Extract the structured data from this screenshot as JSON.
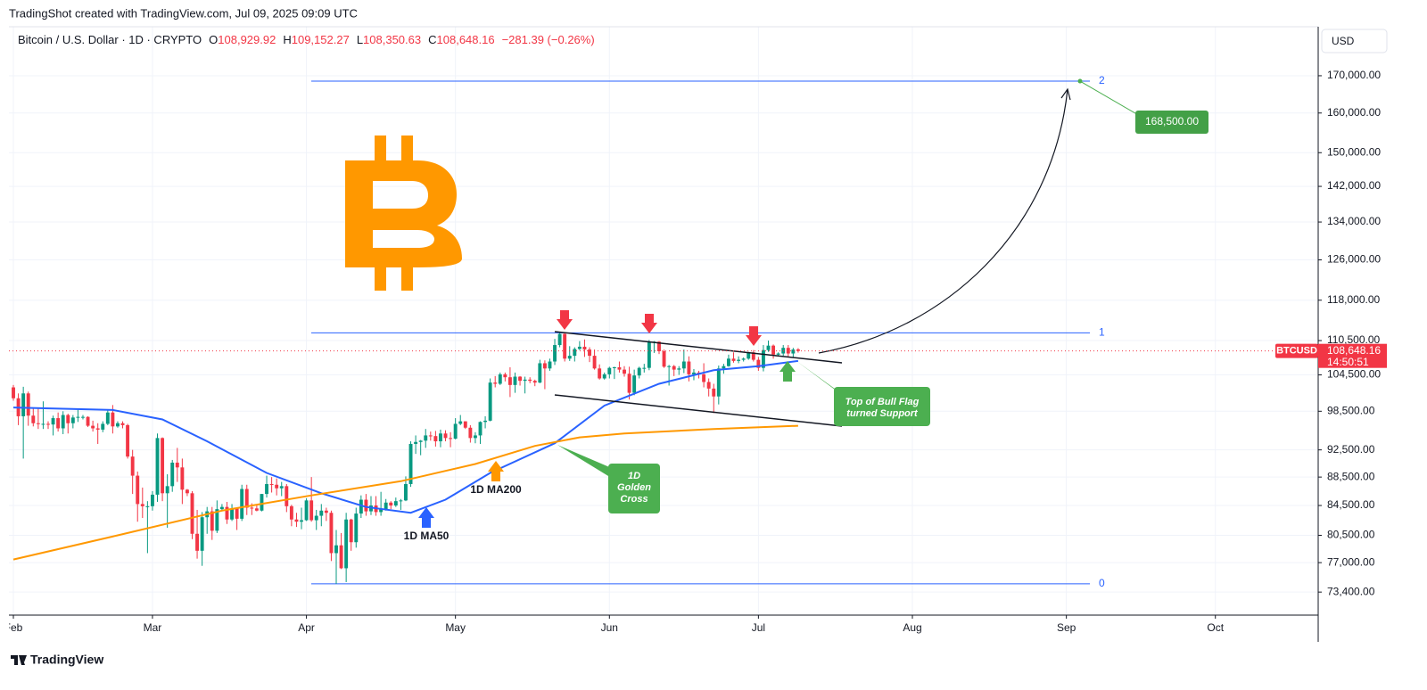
{
  "header": "TradingShot created with TradingView.com, Jul 09, 2025 09:09 UTC",
  "footer": "TradingView",
  "chart_data": {
    "type": "candlestick",
    "title": "Bitcoin / U.S. Dollar · 1D · CRYPTO",
    "ohlc": [
      {
        "prefix": "O",
        "text": "108,929.92"
      },
      {
        "prefix": "H",
        "text": "109,152.27"
      },
      {
        "prefix": "L",
        "text": "108,350.63"
      },
      {
        "prefix": "C",
        "text": "108,648.16"
      }
    ],
    "change": "−281.39 (−0.26%)",
    "currency": "USD",
    "log_scale": true,
    "grid": true,
    "up_color": "#089981",
    "down_color": "#f23645",
    "xlim": [
      -0.9,
      262.7
    ],
    "xticks": [
      {
        "value": 0,
        "label": "Feb"
      },
      {
        "value": 28,
        "label": "Mar"
      },
      {
        "value": 59,
        "label": "Apr"
      },
      {
        "value": 89,
        "label": "May"
      },
      {
        "value": 120,
        "label": "Jun"
      },
      {
        "value": 150,
        "label": "Jul"
      },
      {
        "value": 181,
        "label": "Aug"
      },
      {
        "value": 212,
        "label": "Sep"
      },
      {
        "value": 242,
        "label": "Oct"
      }
    ],
    "ylim": [
      70700,
      184100
    ],
    "yticks": [
      {
        "value": 170000,
        "label": "170,000.00"
      },
      {
        "value": 160000,
        "label": "160,000.00"
      },
      {
        "value": 150000,
        "label": "150,000.00"
      },
      {
        "value": 142000,
        "label": "142,000.00"
      },
      {
        "value": 134000,
        "label": "134,000.00"
      },
      {
        "value": 126000,
        "label": "126,000.00"
      },
      {
        "value": 118000,
        "label": "118,000.00"
      },
      {
        "value": 110500,
        "label": "110,500.00"
      },
      {
        "value": 104500,
        "label": "104,500.00"
      },
      {
        "value": 98500,
        "label": "98,500.00"
      },
      {
        "value": 92500,
        "label": "92,500.00"
      },
      {
        "value": 88500,
        "label": "88,500.00"
      },
      {
        "value": 84500,
        "label": "84,500.00"
      },
      {
        "value": 80500,
        "label": "80,500.00"
      },
      {
        "value": 77000,
        "label": "77,000.00"
      },
      {
        "value": 73400,
        "label": "73,400.00"
      }
    ],
    "candles": [
      [
        102400,
        102800,
        100200,
        100600
      ],
      [
        100600,
        101400,
        96300,
        97700
      ],
      [
        97700,
        102500,
        91200,
        101400
      ],
      [
        101400,
        101700,
        96200,
        97800
      ],
      [
        97800,
        99000,
        96100,
        96600
      ],
      [
        96600,
        99000,
        95700,
        96500
      ],
      [
        96500,
        100100,
        95700,
        96500
      ],
      [
        96500,
        96900,
        95700,
        96400
      ],
      [
        96400,
        97800,
        94700,
        97400
      ],
      [
        97400,
        98300,
        95300,
        95800
      ],
      [
        95800,
        98500,
        94900,
        97900
      ],
      [
        97900,
        98100,
        95000,
        96600
      ],
      [
        96600,
        97900,
        95800,
        97500
      ],
      [
        97500,
        98800,
        96800,
        97600
      ],
      [
        97600,
        97900,
        97200,
        97600
      ],
      [
        97600,
        97700,
        96000,
        96200
      ],
      [
        96200,
        97000,
        95300,
        95800
      ],
      [
        95800,
        96600,
        93400,
        95600
      ],
      [
        95600,
        96900,
        95200,
        96500
      ],
      [
        96500,
        98700,
        96300,
        98300
      ],
      [
        98300,
        99500,
        95000,
        96100
      ],
      [
        96100,
        96900,
        95900,
        96600
      ],
      [
        96600,
        96900,
        95800,
        96300
      ],
      [
        96300,
        96500,
        91200,
        91500
      ],
      [
        91500,
        92500,
        86100,
        88700
      ],
      [
        88700,
        89300,
        82300,
        84700
      ],
      [
        84700,
        87000,
        82800,
        84400
      ],
      [
        84400,
        85100,
        78200,
        84400
      ],
      [
        84400,
        86500,
        83800,
        86000
      ],
      [
        86000,
        95000,
        85000,
        94300
      ],
      [
        94300,
        94400,
        85100,
        86200
      ],
      [
        86200,
        88900,
        81500,
        87200
      ],
      [
        87200,
        91000,
        86400,
        90600
      ],
      [
        90600,
        92800,
        87800,
        89900
      ],
      [
        89900,
        91200,
        84700,
        86700
      ],
      [
        86700,
        86800,
        85800,
        86200
      ],
      [
        86200,
        86500,
        80000,
        80700
      ],
      [
        80700,
        83900,
        77500,
        78500
      ],
      [
        78500,
        83600,
        76600,
        82900
      ],
      [
        82900,
        84300,
        80700,
        83700
      ],
      [
        83700,
        84300,
        79900,
        81100
      ],
      [
        81100,
        85200,
        80800,
        84000
      ],
      [
        84000,
        84700,
        83700,
        84300
      ],
      [
        84300,
        85000,
        82000,
        82600
      ],
      [
        82600,
        84700,
        82400,
        84100
      ],
      [
        84100,
        84100,
        81200,
        82700
      ],
      [
        82700,
        87400,
        82400,
        86800
      ],
      [
        86800,
        87400,
        83200,
        84200
      ],
      [
        84200,
        84800,
        83200,
        84100
      ],
      [
        84100,
        84500,
        83700,
        83800
      ],
      [
        83800,
        86100,
        83700,
        86100
      ],
      [
        86100,
        88700,
        85600,
        87500
      ],
      [
        87500,
        88500,
        86300,
        87400
      ],
      [
        87400,
        88300,
        85900,
        86900
      ],
      [
        86900,
        87800,
        85800,
        87200
      ],
      [
        87200,
        87500,
        83600,
        84400
      ],
      [
        84400,
        84600,
        81700,
        82600
      ],
      [
        82600,
        83500,
        81600,
        82300
      ],
      [
        82300,
        84200,
        81300,
        82500
      ],
      [
        82500,
        85500,
        82400,
        85200
      ],
      [
        85200,
        88500,
        82300,
        82500
      ],
      [
        82500,
        83900,
        81200,
        83100
      ],
      [
        83100,
        84700,
        81700,
        83800
      ],
      [
        83800,
        84200,
        82400,
        83500
      ],
      [
        83500,
        83800,
        77200,
        78200
      ],
      [
        78200,
        81200,
        74400,
        79200
      ],
      [
        79200,
        80800,
        76200,
        76300
      ],
      [
        76300,
        83500,
        74600,
        82600
      ],
      [
        82600,
        82700,
        78500,
        79600
      ],
      [
        79600,
        84200,
        78900,
        83400
      ],
      [
        83400,
        85900,
        82800,
        85300
      ],
      [
        85300,
        86100,
        83100,
        83700
      ],
      [
        83700,
        85800,
        83200,
        84500
      ],
      [
        84500,
        85800,
        83100,
        83600
      ],
      [
        83600,
        86400,
        83100,
        84000
      ],
      [
        84000,
        85400,
        83800,
        84900
      ],
      [
        84900,
        85100,
        84000,
        84500
      ],
      [
        84500,
        85600,
        84300,
        85100
      ],
      [
        85100,
        85400,
        83900,
        85200
      ],
      [
        85200,
        88600,
        85100,
        87500
      ],
      [
        87500,
        93800,
        87100,
        93400
      ],
      [
        93400,
        94700,
        91900,
        93700
      ],
      [
        93700,
        94000,
        91700,
        93900
      ],
      [
        93900,
        95700,
        92800,
        94700
      ],
      [
        94700,
        95300,
        93900,
        94600
      ],
      [
        94600,
        95400,
        93000,
        93800
      ],
      [
        93800,
        95600,
        92900,
        95000
      ],
      [
        95000,
        95500,
        93800,
        94300
      ],
      [
        94300,
        95200,
        92900,
        94200
      ],
      [
        94200,
        97400,
        94100,
        96500
      ],
      [
        96500,
        97900,
        96300,
        96900
      ],
      [
        96900,
        96900,
        95700,
        95900
      ],
      [
        95900,
        96300,
        93600,
        94300
      ],
      [
        94300,
        95200,
        93500,
        94700
      ],
      [
        94700,
        96900,
        93400,
        96800
      ],
      [
        96800,
        97700,
        95800,
        97000
      ],
      [
        97000,
        103900,
        96900,
        103200
      ],
      [
        103200,
        104300,
        102400,
        103000
      ],
      [
        103000,
        104900,
        102800,
        104600
      ],
      [
        104600,
        104900,
        103400,
        104100
      ],
      [
        104100,
        105800,
        100800,
        102800
      ],
      [
        102800,
        104900,
        101500,
        104200
      ],
      [
        104200,
        104300,
        102700,
        103500
      ],
      [
        103500,
        104200,
        101400,
        103700
      ],
      [
        103700,
        104100,
        103100,
        103500
      ],
      [
        103500,
        103700,
        102600,
        103200
      ],
      [
        103200,
        107100,
        103100,
        106500
      ],
      [
        106500,
        107000,
        102100,
        105600
      ],
      [
        105600,
        107300,
        105200,
        106800
      ],
      [
        106800,
        110800,
        106200,
        109700
      ],
      [
        109700,
        111900,
        109300,
        111700
      ],
      [
        111700,
        111800,
        106800,
        107300
      ],
      [
        107300,
        109500,
        106900,
        107800
      ],
      [
        107800,
        109300,
        106800,
        109000
      ],
      [
        109000,
        110400,
        108800,
        109400
      ],
      [
        109400,
        110700,
        107600,
        108900
      ],
      [
        108900,
        109300,
        106700,
        107800
      ],
      [
        107800,
        108900,
        105400,
        105600
      ],
      [
        105600,
        106300,
        103700,
        103900
      ],
      [
        103900,
        104900,
        103700,
        104600
      ],
      [
        104600,
        105900,
        103900,
        105700
      ],
      [
        105700,
        105900,
        103800,
        105800
      ],
      [
        105800,
        106800,
        104900,
        105400
      ],
      [
        105400,
        106000,
        104200,
        104700
      ],
      [
        104700,
        105900,
        100400,
        101500
      ],
      [
        101500,
        105400,
        101100,
        104400
      ],
      [
        104400,
        105900,
        103900,
        105700
      ],
      [
        105700,
        106400,
        104900,
        105700
      ],
      [
        105700,
        110600,
        105300,
        110300
      ],
      [
        110300,
        110400,
        108300,
        110300
      ],
      [
        110300,
        110400,
        108100,
        108600
      ],
      [
        108600,
        108900,
        105700,
        105900
      ],
      [
        105900,
        106200,
        102700,
        106000
      ],
      [
        106000,
        106200,
        104300,
        105400
      ],
      [
        105400,
        106000,
        104500,
        105600
      ],
      [
        105600,
        108900,
        104800,
        106800
      ],
      [
        106800,
        107700,
        103400,
        104600
      ],
      [
        104600,
        105500,
        103600,
        104900
      ],
      [
        104900,
        105200,
        103900,
        104600
      ],
      [
        104600,
        106500,
        102400,
        103300
      ],
      [
        103300,
        103900,
        100900,
        102200
      ],
      [
        102200,
        103000,
        98200,
        100900
      ],
      [
        100900,
        106100,
        99600,
        105600
      ],
      [
        105600,
        106400,
        104700,
        106000
      ],
      [
        106000,
        108000,
        105900,
        107300
      ],
      [
        107300,
        108400,
        106600,
        106900
      ],
      [
        106900,
        107700,
        106500,
        107100
      ],
      [
        107100,
        107500,
        106800,
        107300
      ],
      [
        107300,
        108500,
        107100,
        108400
      ],
      [
        108400,
        108800,
        106800,
        107100
      ],
      [
        107100,
        107600,
        105200,
        105700
      ],
      [
        105700,
        109700,
        105100,
        108800
      ],
      [
        108800,
        110500,
        108500,
        109600
      ],
      [
        109600,
        109800,
        107300,
        108000
      ],
      [
        108000,
        108400,
        107800,
        108200
      ],
      [
        108200,
        109700,
        107800,
        109200
      ],
      [
        109200,
        109700,
        107500,
        108200
      ],
      [
        108200,
        109200,
        107500,
        108900
      ],
      [
        108929.92,
        109152.27,
        108350.63,
        108648.16
      ]
    ],
    "series": [
      {
        "name": "1D MA50",
        "color": "#2962ff",
        "x": [
          0,
          20,
          30,
          39,
          51,
          62,
          71,
          80,
          87,
          96,
          109,
          119,
          130,
          141,
          150,
          158
        ],
        "values": [
          99100,
          98700,
          97200,
          93800,
          89100,
          86200,
          84300,
          83500,
          85300,
          89100,
          93500,
          99400,
          103000,
          105300,
          106000,
          106900
        ]
      },
      {
        "name": "1D MA200",
        "color": "#ff9800",
        "x": [
          0,
          21,
          42,
          60,
          78,
          93,
          105,
          114,
          123,
          141,
          158
        ],
        "values": [
          77400,
          80500,
          83800,
          85900,
          87900,
          90400,
          93100,
          94400,
          95000,
          95700,
          96200
        ]
      }
    ],
    "fib": {
      "levels": [
        0,
        1,
        2
      ],
      "prices": [
        74400,
        111900,
        168500
      ],
      "color": "#2962ff"
    },
    "target": {
      "value": 168500,
      "label": "168,500.00"
    },
    "last": {
      "symbol": "BTCUSD",
      "value": 108648.16,
      "label": "108,648.16",
      "countdown": "14:50:51"
    },
    "annotations": {
      "golden_cross": [
        "1D",
        "Golden",
        "Cross"
      ],
      "bull_flag": [
        "Top of Bull Flag",
        "turned Support"
      ]
    }
  }
}
